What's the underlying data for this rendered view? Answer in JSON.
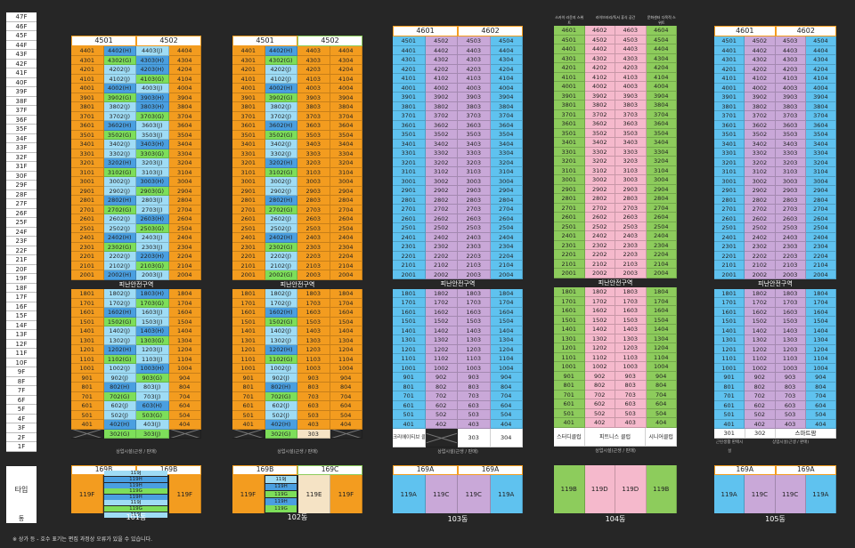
{
  "floors": [
    "47F",
    "46F",
    "45F",
    "44F",
    "43F",
    "42F",
    "41F",
    "40F",
    "39F",
    "38F",
    "37F",
    "36F",
    "35F",
    "34F",
    "33F",
    "32F",
    "31F",
    "30F",
    "29F",
    "28F",
    "27F",
    "26F",
    "25F",
    "24F",
    "23F",
    "22F",
    "21F",
    "20F",
    "19F",
    "18F",
    "17F",
    "16F",
    "15F",
    "14F",
    "13F",
    "12F",
    "11F",
    "10F",
    "9F",
    "8F",
    "7F",
    "6F",
    "5F",
    "4F",
    "3F",
    "2F",
    "1F"
  ],
  "left_labels": {
    "tip": "타입",
    "dong": "동"
  },
  "colors": {
    "orange": "#f39c1f",
    "blue": "#5fc2ef",
    "purple": "#c9a8d8",
    "pink": "#f5b9cc",
    "green": "#8dcc5c",
    "lightgreen": "#7dde5a",
    "lightblue": "#9fdcf5",
    "cream": "#f5e3c5",
    "darkblue": "#4a9fe0"
  },
  "band_label": "피난안전구역",
  "sub_label": "상업시설(근생 / 판매)",
  "note": "※ 상가 등 - 호수 표기는 편집 과정상 오류가 있을 수 있습니다.",
  "b101": {
    "header": [
      "4501",
      "4502"
    ],
    "upper": [
      [
        "4401",
        "4402(H)",
        "4403(J)",
        "4404"
      ],
      [
        "4301",
        "4302(G)",
        "4303(H)",
        "4304"
      ],
      [
        "4201",
        "4202(J)",
        "4203(H)",
        "4204"
      ],
      [
        "4101",
        "4102(J)",
        "4103(G)",
        "4104"
      ],
      [
        "4001",
        "4002(H)",
        "4003(J)",
        "4004"
      ],
      [
        "3901",
        "3902(G)",
        "3903(H)",
        "3904"
      ],
      [
        "3801",
        "3802(J)",
        "3803(H)",
        "3804"
      ],
      [
        "3701",
        "3702(J)",
        "3703(G)",
        "3704"
      ],
      [
        "3601",
        "3602(H)",
        "3603(J)",
        "3604"
      ],
      [
        "3501",
        "3502(G)",
        "3503(J)",
        "3504"
      ],
      [
        "3401",
        "3402(J)",
        "3403(H)",
        "3404"
      ],
      [
        "3301",
        "3302(J)",
        "3303(G)",
        "3304"
      ],
      [
        "3201",
        "3202(H)",
        "3203(J)",
        "3204"
      ],
      [
        "3101",
        "3102(G)",
        "3103(J)",
        "3104"
      ],
      [
        "3001",
        "3002(J)",
        "3003(H)",
        "3004"
      ],
      [
        "2901",
        "2902(J)",
        "2903(G)",
        "2904"
      ],
      [
        "2801",
        "2802(H)",
        "2803(J)",
        "2804"
      ],
      [
        "2701",
        "2702(G)",
        "2703(J)",
        "2704"
      ],
      [
        "2601",
        "2602(J)",
        "2603(H)",
        "2604"
      ],
      [
        "2501",
        "2502(J)",
        "2503(G)",
        "2504"
      ],
      [
        "2401",
        "2402(H)",
        "2403(J)",
        "2404"
      ],
      [
        "2301",
        "2302(G)",
        "2303(J)",
        "2304"
      ],
      [
        "2201",
        "2202(J)",
        "2203(H)",
        "2204"
      ],
      [
        "2101",
        "2102(J)",
        "2103(G)",
        "2104"
      ],
      [
        "2001",
        "2002(H)",
        "2003(J)",
        "2004"
      ]
    ],
    "lower": [
      [
        "1801",
        "1802(J)",
        "1803(H)",
        "1804"
      ],
      [
        "1701",
        "1702(J)",
        "1703(G)",
        "1704"
      ],
      [
        "1601",
        "1602(H)",
        "1603(J)",
        "1604"
      ],
      [
        "1501",
        "1502(G)",
        "1503(J)",
        "1504"
      ],
      [
        "1401",
        "1402(J)",
        "1403(H)",
        "1404"
      ],
      [
        "1301",
        "1302(J)",
        "1303(G)",
        "1304"
      ],
      [
        "1201",
        "1202(H)",
        "1203(J)",
        "1204"
      ],
      [
        "1101",
        "1102(G)",
        "1103(J)",
        "1104"
      ],
      [
        "1001",
        "1002(J)",
        "1003(H)",
        "1004"
      ],
      [
        "901",
        "902(J)",
        "903(G)",
        "904"
      ],
      [
        "801",
        "802(H)",
        "803(J)",
        "804"
      ],
      [
        "701",
        "702(G)",
        "703(J)",
        "704"
      ],
      [
        "601",
        "602(J)",
        "603(H)",
        "604"
      ],
      [
        "501",
        "502(J)",
        "503(G)",
        "504"
      ],
      [
        "401",
        "402(H)",
        "403(J)",
        "404"
      ]
    ],
    "third": [
      "",
      "302(G)",
      "303(J)",
      ""
    ],
    "type_header": [
      "169B",
      "169B"
    ],
    "types": [
      "119F",
      "119J",
      "119H",
      "119G",
      "119J",
      "119F"
    ],
    "type_list": [
      "119J",
      "119H",
      "119H",
      "119G",
      "119H",
      "119J",
      "119G",
      "119J"
    ],
    "dong": "101동"
  },
  "b102": {
    "header": [
      "4501",
      "4502"
    ],
    "upper": [
      [
        "4401",
        "4402(H)",
        "4403",
        "4404"
      ],
      [
        "4301",
        "4302(G)",
        "4303",
        "4304"
      ],
      [
        "4201",
        "4202(J)",
        "4203",
        "4204"
      ],
      [
        "4101",
        "4102(J)",
        "4103",
        "4104"
      ],
      [
        "4001",
        "4002(H)",
        "4003",
        "4004"
      ],
      [
        "3901",
        "3902(G)",
        "3903",
        "3904"
      ],
      [
        "3801",
        "3802(J)",
        "3803",
        "3804"
      ],
      [
        "3701",
        "3702(J)",
        "3703",
        "3704"
      ],
      [
        "3601",
        "3602(H)",
        "3603",
        "3604"
      ],
      [
        "3501",
        "3502(G)",
        "3503",
        "3504"
      ],
      [
        "3401",
        "3402(J)",
        "3403",
        "3404"
      ],
      [
        "3301",
        "3302(J)",
        "3303",
        "3304"
      ],
      [
        "3201",
        "3202(H)",
        "3203",
        "3204"
      ],
      [
        "3101",
        "3102(G)",
        "3103",
        "3104"
      ],
      [
        "3001",
        "3002(J)",
        "3003",
        "3004"
      ],
      [
        "2901",
        "2902(J)",
        "2903",
        "2904"
      ],
      [
        "2801",
        "2802(H)",
        "2803",
        "2804"
      ],
      [
        "2701",
        "2702(G)",
        "2703",
        "2704"
      ],
      [
        "2601",
        "2602(J)",
        "2603",
        "2604"
      ],
      [
        "2501",
        "2502(J)",
        "2503",
        "2504"
      ],
      [
        "2401",
        "2402(H)",
        "2403",
        "2404"
      ],
      [
        "2301",
        "2302(G)",
        "2303",
        "2304"
      ],
      [
        "2201",
        "2202(J)",
        "2203",
        "2204"
      ],
      [
        "2101",
        "2102(J)",
        "2103",
        "2104"
      ],
      [
        "2001",
        "2002(G)",
        "2003",
        "2004"
      ]
    ],
    "lower": [
      [
        "1801",
        "1802(J)",
        "1803",
        "1804"
      ],
      [
        "1701",
        "1702(J)",
        "1703",
        "1704"
      ],
      [
        "1601",
        "1602(H)",
        "1603",
        "1604"
      ],
      [
        "1501",
        "1502(G)",
        "1503",
        "1504"
      ],
      [
        "1401",
        "1402(J)",
        "1403",
        "1404"
      ],
      [
        "1301",
        "1302(J)",
        "1303",
        "1304"
      ],
      [
        "1201",
        "1202(H)",
        "1203",
        "1204"
      ],
      [
        "1101",
        "1102(G)",
        "1103",
        "1104"
      ],
      [
        "1001",
        "1002(J)",
        "1003",
        "1004"
      ],
      [
        "901",
        "902(J)",
        "903",
        "904"
      ],
      [
        "801",
        "802(H)",
        "803",
        "804"
      ],
      [
        "701",
        "702(G)",
        "703",
        "704"
      ],
      [
        "601",
        "602(J)",
        "603",
        "604"
      ],
      [
        "501",
        "502(J)",
        "503",
        "504"
      ],
      [
        "401",
        "402(H)",
        "403",
        "404"
      ]
    ],
    "third": [
      "",
      "302(G)",
      "303",
      ""
    ],
    "type_header": [
      "169B",
      "169C"
    ],
    "types": [
      "119F",
      "119J",
      "119E",
      "119F"
    ],
    "type_list": [
      "119J",
      "119H",
      "119G",
      "119H",
      "119G"
    ],
    "dong": "102동"
  },
  "b103": {
    "header": [
      "4601",
      "4602"
    ],
    "cells": "103",
    "third": [
      "크리에이티브 클럽",
      "",
      "303",
      "304"
    ],
    "type_header": [
      "169A",
      "169A"
    ],
    "types": [
      "119A",
      "119C",
      "119C",
      "119A"
    ],
    "dong": "103동"
  },
  "b104": {
    "header_notes": [
      "스카이 라운지 스위트",
      "라이브러리/독서 휴식 공간",
      "문화센터 다목적 스위트"
    ],
    "third": [
      "스터디클럽",
      "피트니스 클럽",
      "시니어클럽"
    ],
    "types": [
      "119B",
      "119D",
      "119D",
      "119B"
    ],
    "dong": "104동"
  },
  "b105": {
    "header": [
      "4601",
      "4602"
    ],
    "third": [
      "301",
      "302",
      "스마트팜",
      ""
    ],
    "first_notes": [
      "근린생활 판매시설",
      "상업시설(근생 / 판매)"
    ],
    "type_header": [
      "169A",
      "169A"
    ],
    "types": [
      "119A",
      "119C",
      "119C",
      "119A"
    ],
    "dong": "105동"
  }
}
